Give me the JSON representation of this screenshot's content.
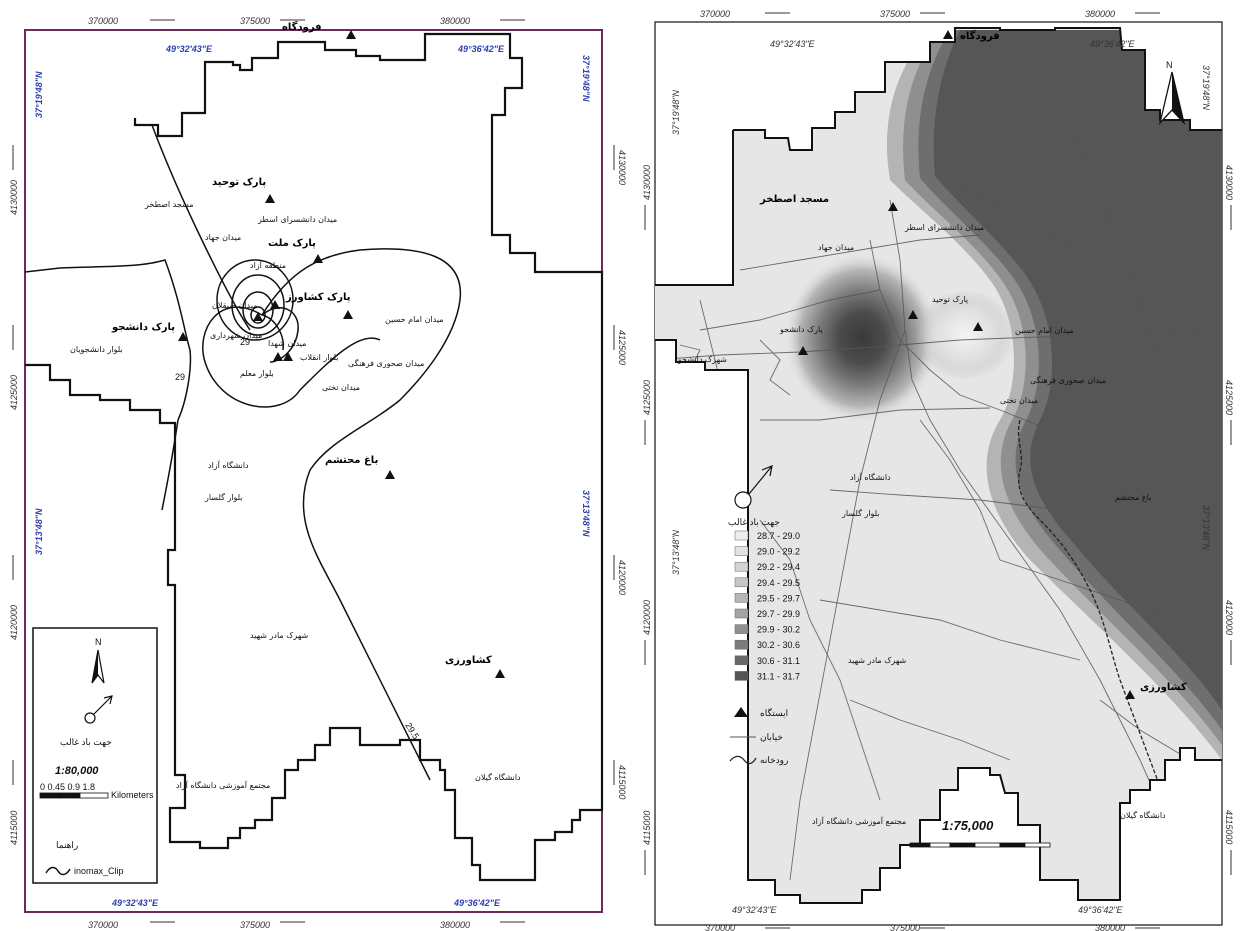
{
  "left_map": {
    "x_ticks": [
      "370000",
      "375000",
      "380000"
    ],
    "y_ticks": [
      "4130000",
      "4125000",
      "4120000",
      "4115000"
    ],
    "lon_labels": [
      "49°32'43\"E",
      "49°36'42\"E"
    ],
    "lat_labels": [
      "37°19'48\"N",
      "37°13'48\"N"
    ],
    "scale_ratio": "1:80,000",
    "scale_numbers": "0  0.45 0.9        1.8",
    "scale_unit": "Kilometers",
    "north_letter": "N",
    "wind_label": "جهت باد غالب",
    "legend_title": "راهنما",
    "legend_item": "inomax_Clip",
    "contour_labels": [
      "29",
      "29",
      "29.5"
    ],
    "stations": [
      {
        "label": "پارک توحید"
      },
      {
        "label": "پارک ملت"
      },
      {
        "label": "پارک کشاورز"
      },
      {
        "label": "پارک دانشجو"
      },
      {
        "label": "باغ محتشم"
      },
      {
        "label": "کشاورزی"
      },
      {
        "label": "فرودگاه"
      }
    ],
    "places": [
      "مسجد اصطخر",
      "میدان دانشسرای اسطر",
      "میدان جهاد",
      "میدان امام حسین",
      "میدان صیقلان",
      "میدان شهرداری",
      "بلوار دانشجویان",
      "میدان شهدا",
      "بلوار معلم",
      "میدان صحوری فرهنگی",
      "میدان تختی",
      "بلوار انقلاب",
      "دانشگاه آزاد",
      "بلوار گلسار",
      "شهرک مادر شهید",
      "دانشگاه گیلان",
      "مجتمع آموزشی دانشگاه آزاد",
      "منطقه آزاد"
    ]
  },
  "right_map": {
    "x_ticks": [
      "370000",
      "375000",
      "380000"
    ],
    "y_ticks": [
      "4130000",
      "4125000",
      "4120000",
      "4115000"
    ],
    "lon_labels": [
      "49°32'43\"E",
      "49°36'42\"E"
    ],
    "lat_labels": [
      "37°19'48\"N",
      "37°13'48\"N"
    ],
    "scale_ratio": "1:75,000",
    "north_letter": "N",
    "wind_label": "جهت باد غالب",
    "class_ranges": [
      "28.7 - 29.0",
      "29.0 - 29.2",
      "29.2 - 29.4",
      "29.4 - 29.5",
      "29.5 - 29.7",
      "29.7 - 29.9",
      "29.9 - 30.2",
      "30.2 - 30.6",
      "30.6 - 31.1",
      "31.1 - 31.7"
    ],
    "class_colors": [
      "#eeeeee",
      "#e2e2e2",
      "#d4d4d4",
      "#c6c6c6",
      "#b6b6b6",
      "#a4a4a4",
      "#909090",
      "#7c7c7c",
      "#686868",
      "#545454"
    ],
    "legend_station": "ایستگاه",
    "legend_street": "خیابان",
    "legend_river": "رودخانه",
    "stations": [
      {
        "label": "فرودگاه"
      },
      {
        "label": "کشاورزی"
      }
    ],
    "places": [
      "مسجد اصطخر",
      "میدان دانشسرای اسطر",
      "میدان جهاد",
      "پارک توحید",
      "پارک دانشجو",
      "میدان امام حسین",
      "میدان صحوری فرهنگی",
      "میدان تختی",
      "شهرک دانشجو",
      "دانشگاه آزاد",
      "بلوار گلسار",
      "شهرک مادر شهید",
      "دانشگاه گیلان",
      "مجتمع آموزشی دانشگاه آزاد",
      "باغ محتشم"
    ]
  }
}
